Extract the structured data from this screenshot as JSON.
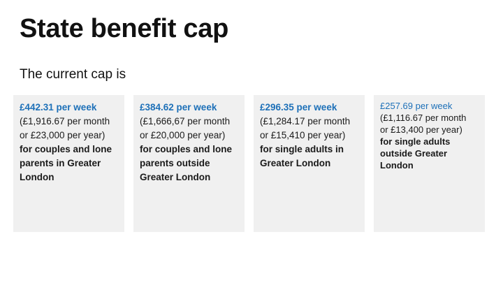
{
  "slide": {
    "title": "State benefit cap",
    "subtitle": "The current cap is"
  },
  "cards": [
    {
      "amount": "£442.31 per week",
      "monthly": "(£1,916.67 per month",
      "yearly": "or £23,000 per year)",
      "description": "for couples and lone parents in Greater London"
    },
    {
      "amount": "£384.62 per week",
      "monthly": "(£1,666,67 per month",
      "yearly": "or £20,000 per year)",
      "description": "for couples and lone parents outside Greater London"
    },
    {
      "amount": "£296.35 per week",
      "monthly": "(£1,284.17 per month",
      "yearly": "or £15,410 per year)",
      "description": "for single adults in Greater London"
    },
    {
      "amount": "£257.69 per week",
      "monthly": "(£1,116.67 per month",
      "yearly": "or £13,400 per year)",
      "description": "for single adults outside Greater London"
    }
  ],
  "colors": {
    "amount": "#1d70b8",
    "card_background": "#f0f0f0",
    "text": "#1a1a1a"
  }
}
